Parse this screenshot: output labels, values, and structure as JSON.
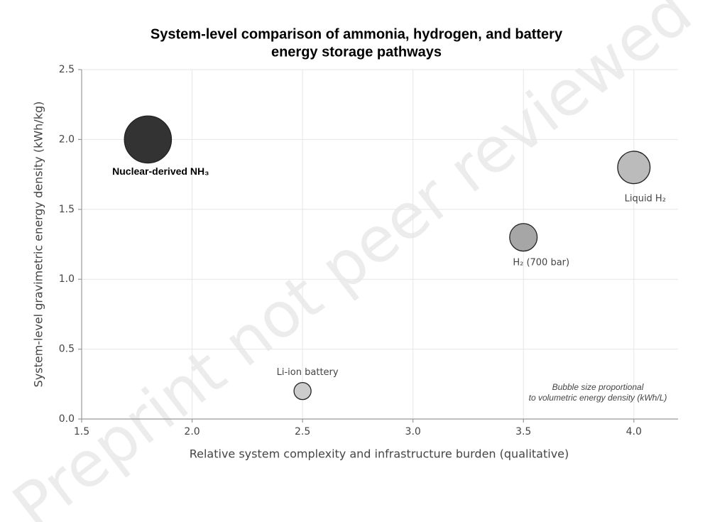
{
  "chart_data": {
    "type": "bubble",
    "title": [
      "System-level comparison of ammonia, hydrogen, and battery",
      "energy storage pathways"
    ],
    "x_label": "Relative system complexity and infrastructure burden (qualitative)",
    "y_label": "System-level gravimetric energy density (kWh/kg)",
    "labels": [
      "Nuclear-derived NH₃",
      "Li-ion battery",
      "H₂ (700 bar)",
      "Liquid H₂"
    ],
    "x": [
      1.8,
      2.5,
      3.5,
      4.0
    ],
    "values": [
      2.0,
      0.2,
      1.3,
      1.8
    ],
    "sizes": [
      3.8,
      0.5,
      1.3,
      1.8
    ],
    "colors": [
      "#333333",
      "#cccccc",
      "#a6a6a6",
      "#bbbbbb"
    ],
    "xlim": [
      1.5,
      4.2
    ],
    "ylim": [
      0,
      2.5
    ],
    "xticks": [
      1.5,
      {
        "value": 2,
        "label": "2.0"
      },
      2.5,
      {
        "value": 3,
        "label": "3.0"
      },
      3.5,
      {
        "value": 4,
        "label": "4.0"
      }
    ],
    "yticks": [
      {
        "value": 0,
        "label": "0.0"
      },
      0.5,
      {
        "value": 1,
        "label": "1.0"
      },
      1.5,
      {
        "value": 2,
        "label": "2.0"
      },
      2.5
    ],
    "grid": true,
    "annotation": [
      "Bubble size proportional",
      "to volumetric energy density (kWh/L)"
    ],
    "watermark": "Preprint not peer reviewed"
  }
}
